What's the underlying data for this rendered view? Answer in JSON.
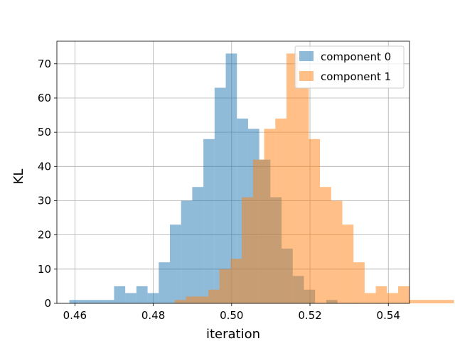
{
  "chart_data": {
    "type": "bar",
    "xlabel": "iteration",
    "ylabel": "KL",
    "xlim": [
      0.4554,
      0.5454
    ],
    "ylim": [
      0,
      76.6
    ],
    "xticks": [
      0.46,
      0.48,
      0.5,
      0.52,
      0.54
    ],
    "xtick_labels": [
      "0.46",
      "0.48",
      "0.50",
      "0.52",
      "0.54"
    ],
    "yticks": [
      0,
      10,
      20,
      30,
      40,
      50,
      60,
      70
    ],
    "ytick_labels": [
      "0",
      "10",
      "20",
      "30",
      "40",
      "50",
      "60",
      "70"
    ],
    "grid": true,
    "legend_position": "upper right",
    "series": [
      {
        "name": "component 0",
        "color": "#1f77b4",
        "opacity": 0.5,
        "bin_start": 0.4586,
        "bin_width": 0.00285,
        "counts": [
          1,
          1,
          1,
          1,
          5,
          3,
          5,
          3,
          12,
          23,
          30,
          34,
          48,
          63,
          73,
          54,
          51,
          42,
          31,
          16,
          8,
          4,
          0,
          1
        ]
      },
      {
        "name": "component 1",
        "color": "#ff7f0e",
        "opacity": 0.5,
        "bin_start": 0.4855,
        "bin_width": 0.00285,
        "counts": [
          1,
          2,
          2,
          4,
          10,
          13,
          31,
          42,
          51,
          54,
          73,
          63,
          48,
          34,
          30,
          23,
          12,
          3,
          5,
          3,
          5,
          1,
          1,
          1,
          1
        ]
      }
    ]
  }
}
